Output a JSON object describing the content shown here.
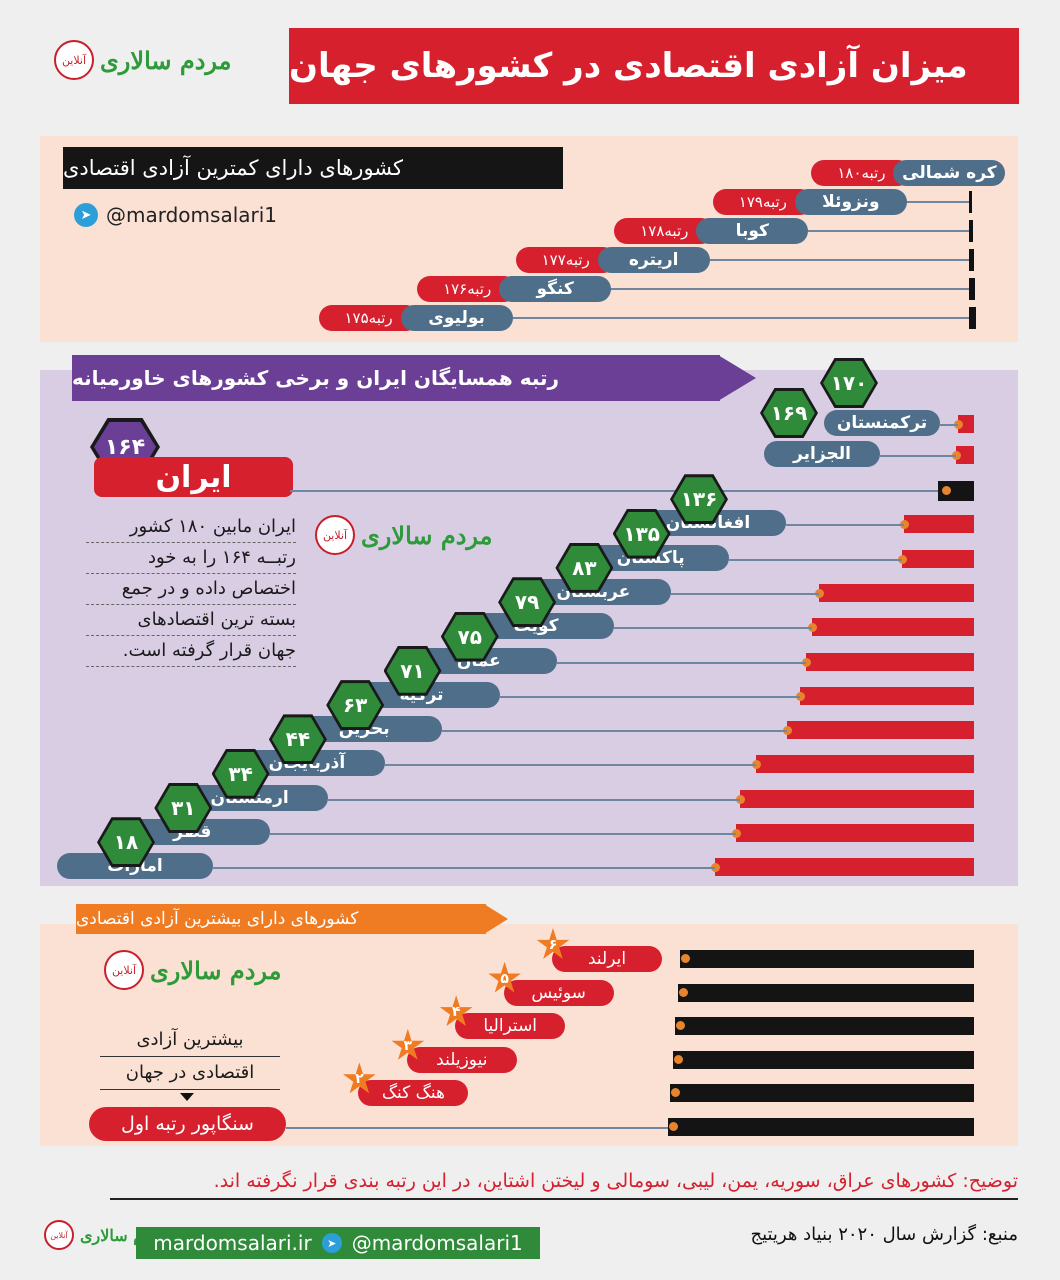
{
  "header": {
    "title": "میزان آزادی اقتصادی در کشورهای جهان",
    "logo_text": "مردم سالاری",
    "logo_badge": "آنلاین"
  },
  "least_free": {
    "heading": "کشورهای دارای کمترین آزادی اقتصادی",
    "handle": "@mardomsalari1",
    "items": [
      {
        "country": "کره شمالی",
        "rank_label": "رتبه۱۸۰"
      },
      {
        "country": "ونزوئلا",
        "rank_label": "رتبه۱۷۹"
      },
      {
        "country": "کوبا",
        "rank_label": "رتبه۱۷۸"
      },
      {
        "country": "اریتره",
        "rank_label": "رتبه۱۷۷"
      },
      {
        "country": "کنگو",
        "rank_label": "رتبه۱۷۶"
      },
      {
        "country": "بولیوی",
        "rank_label": "رتبه۱۷۵"
      }
    ]
  },
  "neighbors": {
    "heading": "رتبه همسایگان ایران و برخی کشورهای خاورمیانه",
    "iran_name": "ایران",
    "iran_rank": "۱۶۴",
    "paragraph": [
      "ایران مابین ۱۸۰ کشور",
      "رتبــه ۱۶۴ را به خود",
      "اختصاص داده و در جمع",
      "بسته ترین اقتصادهای",
      "جهان قرار گرفته است."
    ]
  },
  "most_free": {
    "heading": "کشورهای دارای بیشترین آزادی اقتصادی",
    "caption": [
      "بیشترین آزادی",
      "اقتصادی در جهان"
    ],
    "first": "سنگاپور رتبه اول"
  },
  "footer": {
    "note": "توضیح: کشورهای عراق، سوریه، یمن، لیبی، سومالی و لیختن اشتاین، در این رتبه بندی قرار نگرفته اند.",
    "source": "منبع: گزارش سال ۲۰۲۰ بنیاد هریتیج",
    "website": "mardomsalari.ir",
    "handle": "@mardomsalari1"
  },
  "chart_data": [
    {
      "type": "bar",
      "categories": [
        "کره شمالی",
        "ونزوئلا",
        "کوبا",
        "اریتره",
        "کنگو",
        "بولیوی"
      ],
      "values": [
        180,
        179,
        178,
        177,
        176,
        175
      ]
    },
    {
      "type": "bar",
      "categories": [
        "ترکمنستان",
        "الجزایر",
        "ایران",
        "افغانستان",
        "پاکستان",
        "عربستان",
        "کویت",
        "عمان",
        "ترکیه",
        "بحرین",
        "آذربایجان",
        "ارمنستان",
        "قطر",
        "امارات"
      ],
      "values": [
        170,
        169,
        164,
        136,
        135,
        83,
        79,
        75,
        71,
        63,
        44,
        34,
        31,
        18
      ],
      "value_labels": [
        "۱۷۰",
        "۱۶۹",
        "۱۶۴",
        "۱۳۶",
        "۱۳۵",
        "۸۳",
        "۷۹",
        "۷۵",
        "۷۱",
        "۶۳",
        "۴۴",
        "۳۴",
        "۳۱",
        "۱۸"
      ]
    },
    {
      "type": "bar",
      "categories": [
        "ایرلند",
        "سوئیس",
        "استرالیا",
        "نیوزیلند",
        "هنگ کنگ",
        "سنگاپور"
      ],
      "values": [
        6,
        5,
        4,
        3,
        2,
        1
      ],
      "value_labels": [
        "۶",
        "۵",
        "۴",
        "۳",
        "۲",
        ""
      ]
    }
  ]
}
